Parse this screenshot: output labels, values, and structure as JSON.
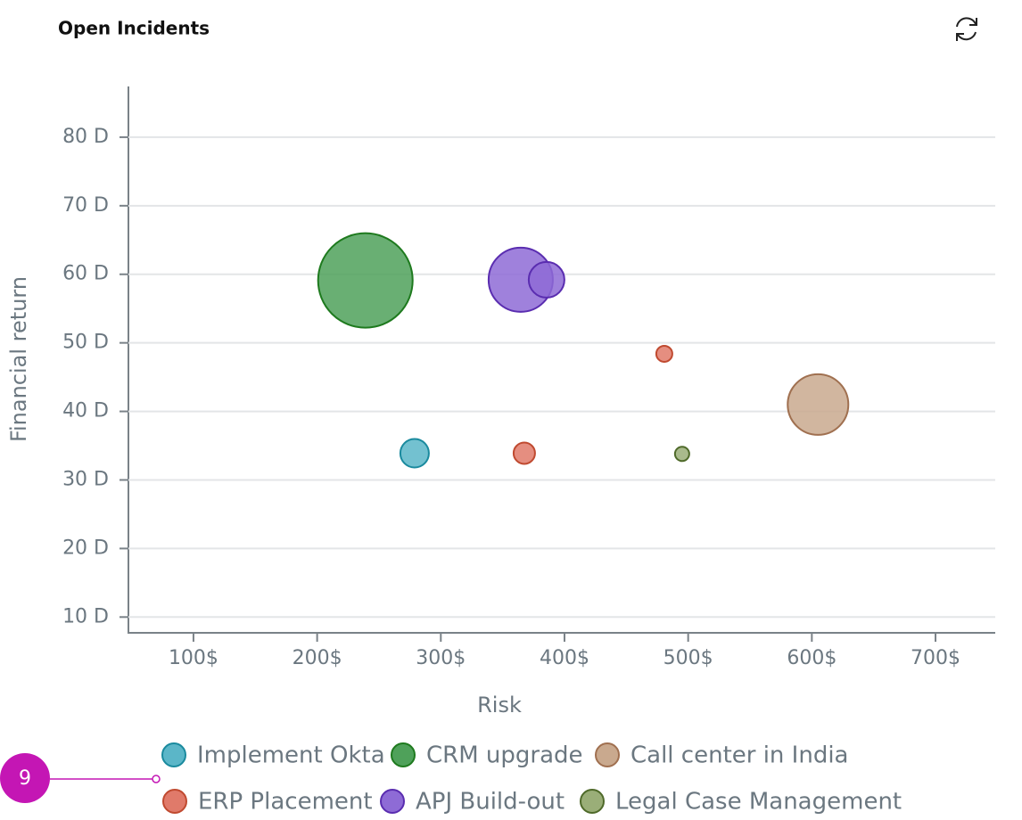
{
  "chart_data": {
    "type": "bubble",
    "title": "Open Incidents",
    "x_label": "Risk",
    "y_label": "Financial return",
    "badge": "9",
    "xlim": [
      47.4,
      748.3
    ],
    "ylim": [
      7.7,
      87.4
    ],
    "xticks": [
      {
        "value": 100,
        "label": "100$"
      },
      {
        "value": 200,
        "label": "200$"
      },
      {
        "value": 300,
        "label": "300$"
      },
      {
        "value": 400,
        "label": "400$"
      },
      {
        "value": 500,
        "label": "500$"
      },
      {
        "value": 600,
        "label": "600$"
      },
      {
        "value": 700,
        "label": "700$"
      }
    ],
    "yticks": [
      {
        "value": 10,
        "label": "10 D"
      },
      {
        "value": 20,
        "label": "20 D"
      },
      {
        "value": 30,
        "label": "30 D"
      },
      {
        "value": 40,
        "label": "40 D"
      },
      {
        "value": 50,
        "label": "50 D"
      },
      {
        "value": 60,
        "label": "60 D"
      },
      {
        "value": 70,
        "label": "70 D"
      },
      {
        "value": 80,
        "label": "80 D"
      }
    ],
    "grid": true,
    "legend": "bottom",
    "series": [
      {
        "name": "Implement Okta",
        "color": "#5bb6c8",
        "stroke": "#1a8a9e",
        "x": [
          278.8
        ],
        "values": [
          33.9
        ],
        "sizes": [
          16
        ]
      },
      {
        "name": "CRM upgrade",
        "color": "#4fa15a",
        "stroke": "#1e7a1e",
        "x": [
          239
        ],
        "values": [
          59.1
        ],
        "sizes": [
          53
        ]
      },
      {
        "name": "Call center in India",
        "color": "#c9a98e",
        "stroke": "#a07050",
        "x": [
          605
        ],
        "values": [
          41
        ],
        "sizes": [
          34
        ]
      },
      {
        "name": "ERP Placement",
        "color": "#e07a6a",
        "stroke": "#c04a30",
        "x": [
          480.7,
          367.5
        ],
        "values": [
          48.4,
          33.9
        ],
        "sizes": [
          9,
          12
        ]
      },
      {
        "name": "APJ Build-out",
        "color": "#8e6bd6",
        "stroke": "#5a2db0",
        "x": [
          364.6,
          385.5
        ],
        "values": [
          59.2,
          59.2
        ],
        "sizes": [
          36,
          20
        ]
      },
      {
        "name": "Legal Case Management",
        "color": "#9aae78",
        "stroke": "#4f6a2a",
        "x": [
          495.1
        ],
        "values": [
          33.8
        ],
        "sizes": [
          8
        ]
      }
    ]
  }
}
